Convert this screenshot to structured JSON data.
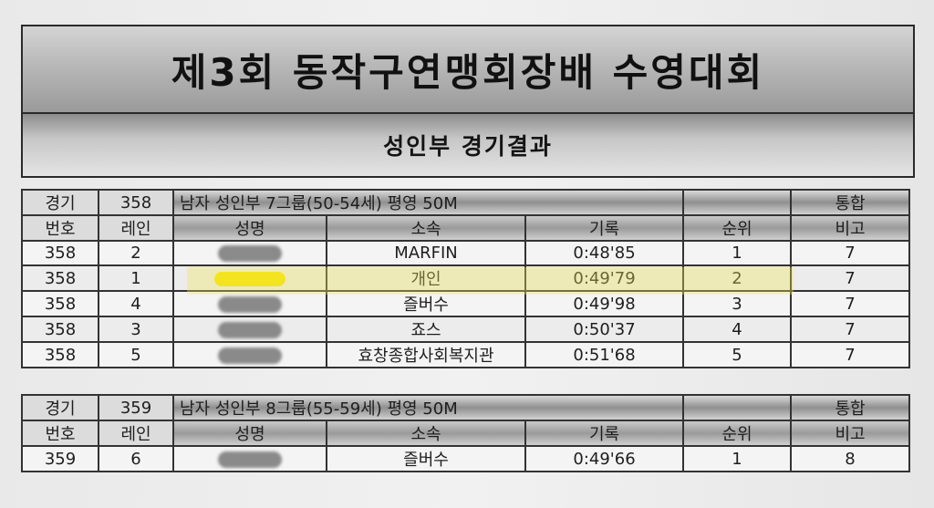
{
  "header": {
    "title": "제3회 동작구연맹회장배 수영대회",
    "subtitle": "성인부 경기결과"
  },
  "tables": [
    {
      "event_no_label": "경기",
      "event_no": "358",
      "event_name": "남자 성인부 7그룹(50-54세) 평영 50M",
      "overall_label": "통합",
      "columns": [
        "번호",
        "레인",
        "성명",
        "소속",
        "기록",
        "순위",
        "비고"
      ],
      "rows": [
        {
          "no": "358",
          "lane": "2",
          "name": "",
          "club": "MARFIN",
          "record": "0:48'85",
          "rank": "1",
          "note": "7"
        },
        {
          "no": "358",
          "lane": "1",
          "name": "",
          "club": "개인",
          "record": "0:49'79",
          "rank": "2",
          "note": "7"
        },
        {
          "no": "358",
          "lane": "4",
          "name": "",
          "club": "즐버수",
          "record": "0:49'98",
          "rank": "3",
          "note": "7"
        },
        {
          "no": "358",
          "lane": "3",
          "name": "",
          "club": "죠스",
          "record": "0:50'37",
          "rank": "4",
          "note": "7"
        },
        {
          "no": "358",
          "lane": "5",
          "name": "",
          "club": "효창종합사회복지관",
          "record": "0:51'68",
          "rank": "5",
          "note": "7"
        }
      ]
    },
    {
      "event_no_label": "경기",
      "event_no": "359",
      "event_name": "남자 성인부 8그룹(55-59세) 평영 50M",
      "overall_label": "통합",
      "columns": [
        "번호",
        "레인",
        "성명",
        "소속",
        "기록",
        "순위",
        "비고"
      ],
      "rows": [
        {
          "no": "359",
          "lane": "6",
          "name": "",
          "club": "즐버수",
          "record": "0:49'66",
          "rank": "1",
          "note": "8"
        }
      ]
    }
  ],
  "colors": {
    "highlight": "#f0e85a",
    "redaction_marker": "#f5e200",
    "redaction_blur": "#8a8a8a"
  }
}
